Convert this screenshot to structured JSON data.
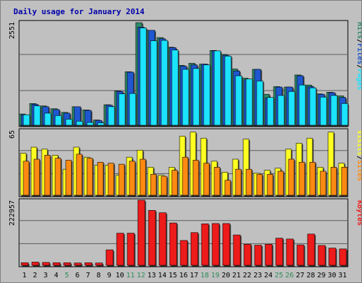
{
  "title": "Daily usage for January 2014",
  "colors": {
    "hits": "#2e8b67",
    "files": "#1f57d0",
    "pages": "#1ce3ff",
    "visits": "#ffff22",
    "sites": "#ff8a12",
    "kbytes": "#ee1b1b",
    "title": "#0000aa",
    "weekend_day": "#2e8b57",
    "weekday": "#000000"
  },
  "chart_data": [
    {
      "type": "bar",
      "title": "Daily usage for January 2014",
      "panel": "hits_files_pages",
      "ymax_label": "2551",
      "ymax": 2551,
      "legend": [
        "Pages",
        "/",
        "Files",
        "/",
        "Hits"
      ],
      "categories": [
        "1",
        "2",
        "3",
        "4",
        "5",
        "6",
        "7",
        "8",
        "9",
        "10",
        "11",
        "12",
        "13",
        "14",
        "15",
        "16",
        "17",
        "18",
        "19",
        "20",
        "21",
        "22",
        "23",
        "24",
        "25",
        "26",
        "27",
        "28",
        "29",
        "30",
        "31"
      ],
      "series": [
        {
          "name": "Hits",
          "values": [
            280,
            540,
            480,
            410,
            320,
            460,
            380,
            130,
            510,
            850,
            1330,
            2551,
            2360,
            2180,
            1940,
            1490,
            1540,
            1520,
            1860,
            1760,
            1400,
            1170,
            1390,
            770,
            960,
            950,
            1250,
            1000,
            780,
            820,
            730
          ]
        },
        {
          "name": "Files",
          "values": [
            260,
            520,
            460,
            390,
            300,
            460,
            370,
            120,
            500,
            840,
            1320,
            2440,
            2360,
            2150,
            1930,
            1470,
            1500,
            1520,
            1850,
            1740,
            1350,
            1130,
            1390,
            680,
            950,
            950,
            1230,
            960,
            770,
            810,
            690
          ]
        },
        {
          "name": "Pages",
          "values": [
            260,
            480,
            300,
            240,
            150,
            100,
            70,
            60,
            460,
            780,
            790,
            2420,
            2100,
            2110,
            1870,
            1390,
            1410,
            1500,
            1850,
            1720,
            1230,
            1150,
            1100,
            690,
            740,
            840,
            1000,
            930,
            700,
            740,
            540
          ]
        }
      ]
    },
    {
      "type": "bar",
      "panel": "visits_sites",
      "ymax_label": "65",
      "ymax": 65,
      "legend": [
        "Sites",
        "/",
        "Visits"
      ],
      "categories": [
        "1",
        "2",
        "3",
        "4",
        "5",
        "6",
        "7",
        "8",
        "9",
        "10",
        "11",
        "12",
        "13",
        "14",
        "15",
        "16",
        "17",
        "18",
        "19",
        "20",
        "21",
        "22",
        "23",
        "24",
        "25",
        "26",
        "27",
        "28",
        "29",
        "30",
        "31"
      ],
      "series": [
        {
          "name": "Visits",
          "values": [
            42,
            48,
            46,
            40,
            26,
            48,
            38,
            30,
            30,
            20,
            38,
            45,
            28,
            20,
            28,
            59,
            63,
            57,
            34,
            23,
            36,
            56,
            22,
            25,
            27,
            46,
            52,
            57,
            28,
            63,
            32
          ]
        },
        {
          "name": "Sites",
          "values": [
            34,
            36,
            40,
            37,
            35,
            41,
            37,
            33,
            32,
            31,
            34,
            36,
            21,
            19,
            25,
            38,
            35,
            32,
            28,
            15,
            26,
            26,
            21,
            21,
            24,
            36,
            33,
            33,
            24,
            28,
            28
          ]
        }
      ]
    },
    {
      "type": "bar",
      "panel": "kbytes",
      "ymax_label": "222957",
      "ymax": 222957,
      "legend": [
        "KBytes"
      ],
      "categories": [
        "1",
        "2",
        "3",
        "4",
        "5",
        "6",
        "7",
        "8",
        "9",
        "10",
        "11",
        "12",
        "13",
        "14",
        "15",
        "16",
        "17",
        "18",
        "19",
        "20",
        "21",
        "22",
        "23",
        "24",
        "25",
        "26",
        "27",
        "28",
        "29",
        "30",
        "31"
      ],
      "series": [
        {
          "name": "KBytes",
          "values": [
            9000,
            11000,
            10000,
            9000,
            9000,
            8000,
            9000,
            8000,
            53000,
            110000,
            110000,
            222957,
            188000,
            180000,
            145000,
            85000,
            112000,
            142000,
            143000,
            143000,
            104000,
            72000,
            69000,
            72000,
            93000,
            90000,
            70000,
            107000,
            68000,
            59000,
            56000
          ]
        }
      ]
    }
  ],
  "weekend_days": [
    5,
    11,
    12,
    18,
    19,
    25,
    26
  ]
}
